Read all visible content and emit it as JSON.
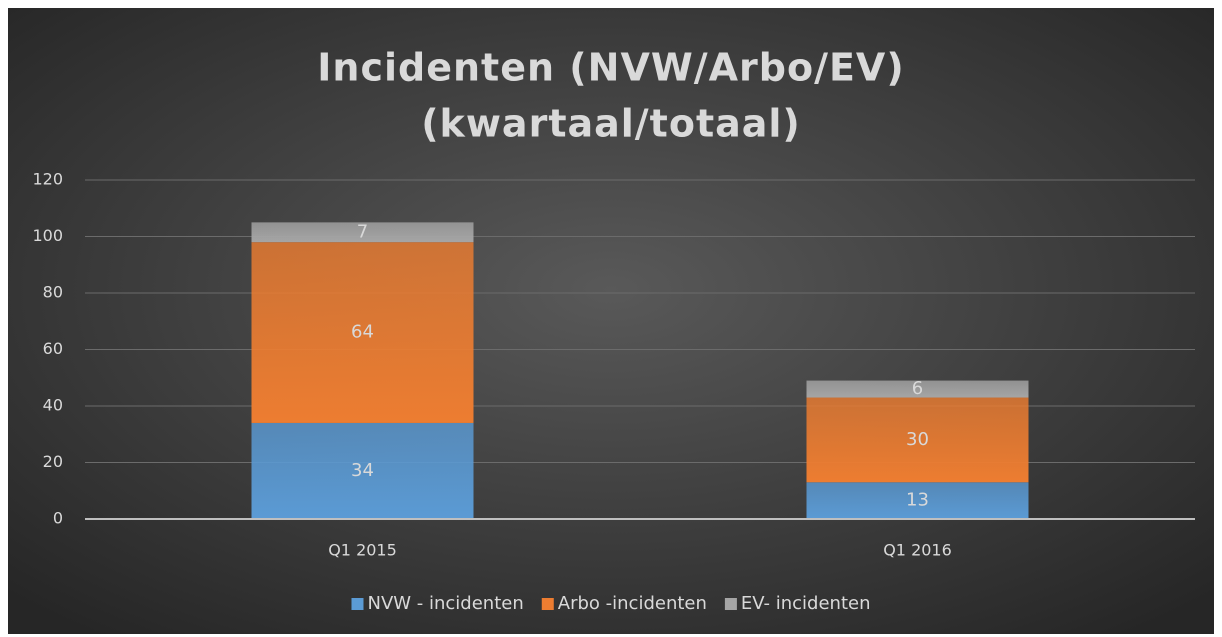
{
  "chart_data": {
    "type": "bar",
    "stacked": true,
    "title": [
      "Incidenten (NVW/Arbo/EV)",
      "(kwartaal/totaal)"
    ],
    "categories": [
      "Q1 2015",
      "Q1 2016"
    ],
    "series": [
      {
        "name": "NVW - incidenten",
        "color": "#5b9bd5",
        "values": [
          34,
          13
        ]
      },
      {
        "name": "Arbo -incidenten",
        "color": "#ed7d31",
        "values": [
          64,
          30
        ]
      },
      {
        "name": "EV- incidenten",
        "color": "#a5a5a5",
        "values": [
          7,
          6
        ]
      }
    ],
    "ylim": [
      0,
      120
    ],
    "yticks": [
      0,
      20,
      40,
      60,
      80,
      100,
      120
    ],
    "grid": true,
    "legend": "bottom"
  }
}
